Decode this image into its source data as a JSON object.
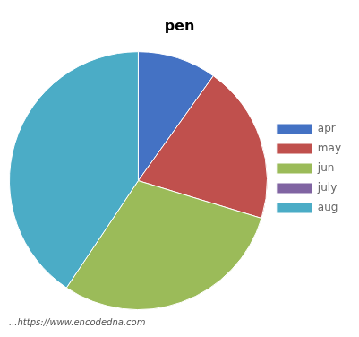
{
  "chart_data": {
    "type": "pie",
    "title": "pen",
    "categories": [
      "apr",
      "may",
      "jun",
      "july",
      "aug"
    ],
    "values": [
      10,
      20,
      30,
      0,
      41
    ],
    "colors": [
      "#4472C4",
      "#C0504D",
      "#9BBB59",
      "#8064A2",
      "#4BACC6"
    ],
    "legend": "right",
    "annotations": [
      "...https://www.encodedna.com"
    ]
  }
}
